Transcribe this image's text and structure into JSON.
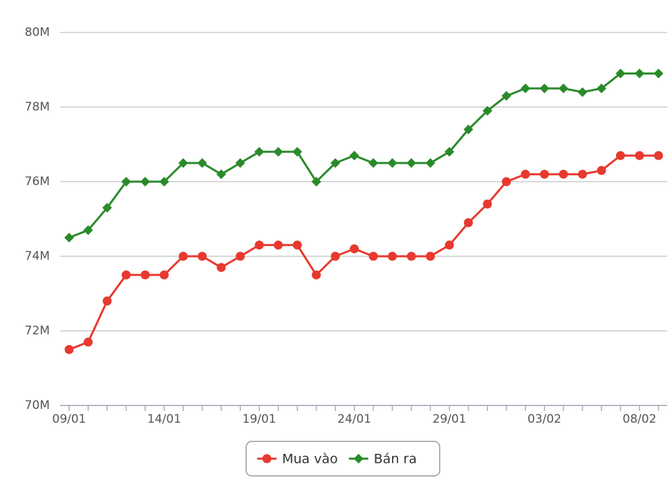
{
  "chart_data": {
    "type": "line",
    "categories": [
      "09/01",
      null,
      null,
      null,
      null,
      "14/01",
      null,
      null,
      null,
      null,
      "19/01",
      null,
      null,
      null,
      null,
      "24/01",
      null,
      null,
      null,
      null,
      "29/01",
      null,
      null,
      null,
      null,
      "03/02",
      null,
      null,
      null,
      null,
      "08/02",
      null
    ],
    "series": [
      {
        "name": "Mua vào",
        "color": "#e8392f",
        "marker": "circle",
        "values": [
          71500000,
          71700000,
          72800000,
          73500000,
          73500000,
          73500000,
          74000000,
          74000000,
          73700000,
          74000000,
          74300000,
          74300000,
          74300000,
          73500000,
          74000000,
          74200000,
          74000000,
          74000000,
          74000000,
          74000000,
          74300000,
          74900000,
          75400000,
          76000000,
          76200000,
          76200000,
          76200000,
          76200000,
          76300000,
          76700000,
          76700000,
          76700000
        ]
      },
      {
        "name": "Bán ra",
        "color": "#2a8a2a",
        "marker": "diamond",
        "values": [
          74500000,
          74700000,
          75300000,
          76000000,
          76000000,
          76000000,
          76500000,
          76500000,
          76200000,
          76500000,
          76800000,
          76800000,
          76800000,
          76000000,
          76500000,
          76700000,
          76500000,
          76500000,
          76500000,
          76500000,
          76800000,
          77400000,
          77900000,
          78300000,
          78500000,
          78500000,
          78500000,
          78400000,
          78500000,
          78900000,
          78900000,
          78900000
        ]
      }
    ],
    "ylim": [
      70000000,
      80000000
    ],
    "yticks": [
      {
        "value": 70000000,
        "label": "70M"
      },
      {
        "value": 72000000,
        "label": "72M"
      },
      {
        "value": 74000000,
        "label": "74M"
      },
      {
        "value": 76000000,
        "label": "76M"
      },
      {
        "value": 78000000,
        "label": "78M"
      },
      {
        "value": 80000000,
        "label": "80M"
      }
    ],
    "grid": true,
    "legend": "bottom"
  }
}
